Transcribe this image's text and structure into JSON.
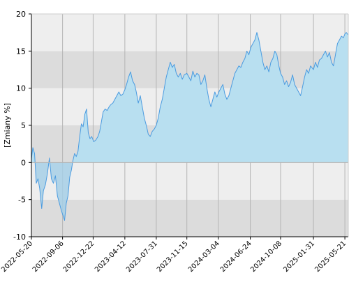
{
  "chart_data": {
    "type": "area",
    "ylabel": "[Zmiany %]",
    "xlabel": "",
    "title": "",
    "ylim": [
      -10,
      20
    ],
    "yticks": [
      -10,
      -5,
      0,
      5,
      10,
      15,
      20
    ],
    "xlim": [
      "2022-05-20",
      "2025-06-02"
    ],
    "xticks": [
      "2022-05-20",
      "2022-09-06",
      "2022-12-22",
      "2023-04-12",
      "2023-07-31",
      "2023-11-15",
      "2024-03-04",
      "2024-06-24",
      "2024-10-08",
      "2025-01-31",
      "2025-05-21"
    ],
    "grid": "vertical lines at x ticks, alternating horizontal bands",
    "colors": {
      "line": "#4a9be0",
      "fill_positive": "#b8dff0",
      "fill_negative": "#a6cfe6",
      "band_light": "#eeeeee",
      "band_dark": "#dcdcdc",
      "grid": "#b4b4b4",
      "axis": "#000000"
    },
    "series": [
      {
        "x": [
          "2022-05-20",
          "2022-05-25",
          "2022-05-31",
          "2022-06-06",
          "2022-06-12",
          "2022-06-18",
          "2022-06-25",
          "2022-07-01",
          "2022-07-08",
          "2022-07-15",
          "2022-07-22",
          "2022-07-29",
          "2022-08-05",
          "2022-08-12",
          "2022-08-19",
          "2022-08-26",
          "2022-09-02",
          "2022-09-08",
          "2022-09-13",
          "2022-09-19",
          "2022-09-25",
          "2022-10-01",
          "2022-10-07",
          "2022-10-12",
          "2022-10-18",
          "2022-10-24",
          "2022-10-30",
          "2022-11-05",
          "2022-11-11",
          "2022-11-17",
          "2022-11-23",
          "2022-11-29",
          "2022-12-05",
          "2022-12-11",
          "2022-12-17",
          "2022-12-24",
          "2022-12-31",
          "2023-01-08",
          "2023-01-14",
          "2023-01-20",
          "2023-01-26",
          "2023-02-02",
          "2023-02-09",
          "2023-02-16",
          "2023-02-22",
          "2023-03-01",
          "2023-03-08",
          "2023-03-15",
          "2023-03-22",
          "2023-03-29",
          "2023-04-05",
          "2023-04-12",
          "2023-04-18",
          "2023-04-25",
          "2023-05-02",
          "2023-05-09",
          "2023-05-16",
          "2023-05-22",
          "2023-05-29",
          "2023-06-05",
          "2023-06-12",
          "2023-06-19",
          "2023-06-26",
          "2023-07-03",
          "2023-07-10",
          "2023-07-17",
          "2023-07-24",
          "2023-07-31",
          "2023-08-07",
          "2023-08-14",
          "2023-08-21",
          "2023-08-28",
          "2023-09-04",
          "2023-09-11",
          "2023-09-18",
          "2023-09-25",
          "2023-10-02",
          "2023-10-09",
          "2023-10-16",
          "2023-10-23",
          "2023-10-30",
          "2023-11-06",
          "2023-11-15",
          "2023-11-22",
          "2023-11-29",
          "2023-12-06",
          "2023-12-13",
          "2023-12-20",
          "2023-12-27",
          "2024-01-03",
          "2024-01-10",
          "2024-01-17",
          "2024-01-24",
          "2024-01-31",
          "2024-02-07",
          "2024-02-14",
          "2024-02-21",
          "2024-02-28",
          "2024-03-06",
          "2024-03-13",
          "2024-03-20",
          "2024-03-27",
          "2024-04-03",
          "2024-04-10",
          "2024-04-17",
          "2024-04-24",
          "2024-05-01",
          "2024-05-08",
          "2024-05-15",
          "2024-05-22",
          "2024-05-29",
          "2024-06-05",
          "2024-06-12",
          "2024-06-19",
          "2024-06-26",
          "2024-07-03",
          "2024-07-10",
          "2024-07-17",
          "2024-07-24",
          "2024-07-31",
          "2024-08-07",
          "2024-08-14",
          "2024-08-21",
          "2024-08-28",
          "2024-09-04",
          "2024-09-11",
          "2024-09-18",
          "2024-09-25",
          "2024-10-02",
          "2024-10-08",
          "2024-10-15",
          "2024-10-22",
          "2024-10-29",
          "2024-11-05",
          "2024-11-12",
          "2024-11-19",
          "2024-11-26",
          "2024-12-03",
          "2024-12-10",
          "2024-12-17",
          "2024-12-24",
          "2024-12-31",
          "2025-01-07",
          "2025-01-14",
          "2025-01-21",
          "2025-01-31",
          "2025-02-07",
          "2025-02-14",
          "2025-02-21",
          "2025-02-28",
          "2025-03-07",
          "2025-03-14",
          "2025-03-21",
          "2025-03-28",
          "2025-04-04",
          "2025-04-11",
          "2025-04-18",
          "2025-04-25",
          "2025-05-02",
          "2025-05-09",
          "2025-05-16",
          "2025-05-21",
          "2025-05-26",
          "2025-06-01"
        ],
        "values": [
          0.5,
          2.0,
          1.2,
          -2.8,
          -2.2,
          -3.5,
          -6.2,
          -3.8,
          -3.0,
          -1.5,
          0.6,
          -2.2,
          -2.8,
          -1.8,
          -4.5,
          -5.5,
          -6.5,
          -7.2,
          -7.8,
          -5.5,
          -4.5,
          -2.0,
          -1.0,
          0.2,
          1.2,
          0.8,
          1.5,
          3.5,
          5.2,
          4.8,
          6.5,
          7.2,
          4.0,
          3.2,
          3.5,
          2.8,
          3.0,
          3.5,
          4.2,
          5.5,
          6.8,
          7.2,
          7.0,
          7.5,
          7.8,
          8.0,
          8.5,
          9.0,
          9.5,
          9.0,
          9.2,
          9.8,
          10.5,
          11.5,
          12.2,
          11.0,
          10.5,
          9.5,
          8.0,
          9.0,
          7.5,
          6.0,
          5.0,
          3.8,
          3.5,
          4.2,
          4.5,
          5.0,
          6.0,
          7.5,
          8.5,
          10.0,
          11.5,
          12.5,
          13.5,
          12.8,
          13.2,
          12.0,
          11.5,
          12.0,
          11.2,
          11.8,
          12.0,
          11.5,
          11.0,
          12.3,
          11.5,
          12.0,
          11.8,
          10.5,
          11.0,
          11.8,
          10.0,
          8.5,
          7.5,
          8.5,
          9.5,
          8.8,
          9.5,
          10.0,
          10.5,
          9.2,
          8.5,
          9.0,
          10.0,
          11.0,
          12.0,
          12.5,
          13.0,
          12.8,
          13.5,
          14.0,
          15.0,
          14.5,
          15.5,
          16.0,
          16.5,
          17.5,
          16.5,
          15.0,
          13.5,
          12.5,
          13.0,
          12.2,
          13.5,
          14.0,
          15.0,
          14.5,
          13.0,
          12.0,
          11.5,
          10.5,
          11.0,
          10.2,
          10.8,
          11.8,
          10.5,
          10.0,
          9.5,
          9.0,
          10.2,
          11.5,
          12.5,
          12.0,
          13.0,
          12.5,
          13.5,
          12.8,
          13.8,
          14.0,
          14.5,
          15.0,
          14.2,
          14.8,
          13.5,
          13.0,
          14.5,
          16.0,
          16.5,
          17.0,
          16.8,
          17.3,
          17.5,
          17.2
        ]
      }
    ]
  }
}
